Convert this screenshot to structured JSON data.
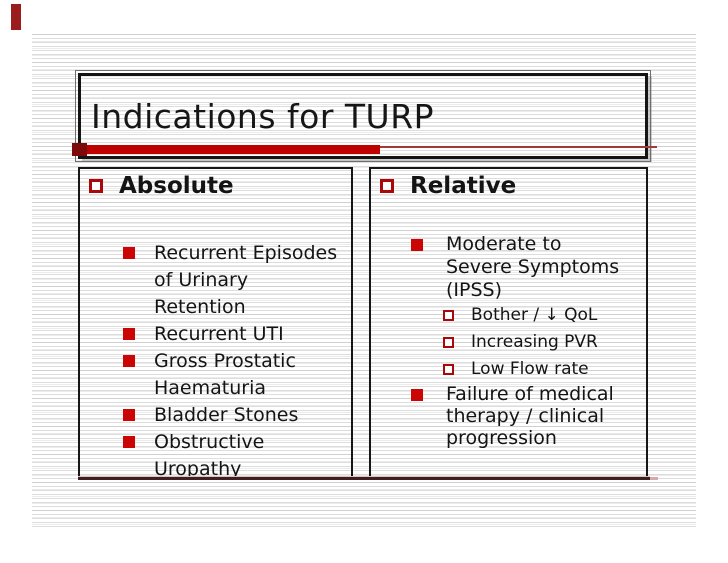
{
  "colors": {
    "accent_red": "#BE0000",
    "dark_red_cap": "#7D0A0A",
    "thin_line_red": "#A33939",
    "bullet_filled": "#CB0404",
    "bullet_outline": "#A80808",
    "corner_bar_red": "#9B1C1C",
    "bottom_rule": "#3D2020",
    "bottom_rule_tail": "#D8A8A8",
    "text_black": "#141414"
  },
  "icons": {
    "filled-square-bullet-icon": "filled red square (CSS shape)",
    "hollow-square-bullet-icon": "red outlined square, white fill (CSS shape)"
  },
  "slide": {
    "title": "Indications for TURP",
    "left_panel": {
      "header": "Absolute",
      "items": [
        "Recurrent Episodes\nof Urinary\nRetention",
        "Recurrent UTI",
        "Gross Prostatic\nHaematuria",
        "Bladder Stones",
        "Obstructive\nUropathy"
      ]
    },
    "right_panel": {
      "header": "Relative",
      "item1": "Moderate to\nSevere Symptoms\n(IPSS)",
      "subitems": [
        "Bother / ↓ QoL",
        "Increasing PVR",
        "Low Flow rate"
      ],
      "item2": "Failure of medical\ntherapy / clinical\nprogression"
    }
  }
}
